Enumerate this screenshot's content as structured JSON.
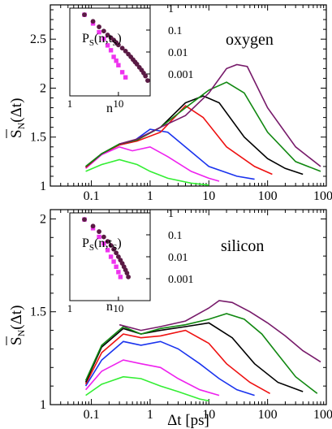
{
  "colors": {
    "green": "#33ee33",
    "magenta": "#ee22ee",
    "blue": "#1a33ee",
    "red": "#ee1111",
    "black": "#000000",
    "darkgreen": "#118811",
    "purple": "#771a6a",
    "inset_pink": "#ee33ee",
    "inset_dark": "#5a1a44"
  },
  "chart_data": [
    {
      "type": "line",
      "label": "oxygen",
      "xscale": "log",
      "xlim": [
        0.02,
        1000
      ],
      "ylim": [
        1,
        2.85
      ],
      "xticks": [
        {
          "v": 0.1,
          "t": "0.1"
        },
        {
          "v": 1,
          "t": "1"
        },
        {
          "v": 10,
          "t": "10"
        },
        {
          "v": 100,
          "t": "100"
        },
        {
          "v": 1000,
          "t": "1000"
        }
      ],
      "yticks": [
        {
          "v": 1,
          "t": "1"
        },
        {
          "v": 1.5,
          "t": "1.5"
        },
        {
          "v": 2,
          "t": "2"
        },
        {
          "v": 2.5,
          "t": "2.5"
        }
      ],
      "ylabel_main": "S",
      "ylabel_sub": "N",
      "ylabel_tail": "(Δt)",
      "series": [
        {
          "color": "green",
          "x": [
            0.08,
            0.15,
            0.3,
            0.6,
            1,
            2,
            5,
            10
          ],
          "y": [
            1.15,
            1.22,
            1.27,
            1.22,
            1.15,
            1.08,
            1.03,
            1.01
          ]
        },
        {
          "color": "magenta",
          "x": [
            0.08,
            0.15,
            0.3,
            0.5,
            1,
            2,
            5,
            10,
            15
          ],
          "y": [
            1.18,
            1.32,
            1.4,
            1.36,
            1.4,
            1.3,
            1.15,
            1.08,
            1.05
          ]
        },
        {
          "color": "blue",
          "x": [
            0.08,
            0.15,
            0.3,
            0.5,
            1,
            2,
            5,
            10,
            30,
            60
          ],
          "y": [
            1.19,
            1.33,
            1.42,
            1.45,
            1.58,
            1.55,
            1.35,
            1.2,
            1.1,
            1.07
          ]
        },
        {
          "color": "red",
          "x": [
            0.08,
            0.15,
            0.3,
            0.6,
            1.5,
            4,
            8,
            20,
            60,
            120
          ],
          "y": [
            1.19,
            1.33,
            1.42,
            1.46,
            1.55,
            1.82,
            1.7,
            1.4,
            1.2,
            1.12
          ]
        },
        {
          "color": "black",
          "x": [
            0.08,
            0.15,
            0.3,
            0.6,
            1.5,
            4,
            8,
            15,
            40,
            100,
            200,
            400
          ],
          "y": [
            1.2,
            1.33,
            1.43,
            1.47,
            1.6,
            1.85,
            1.92,
            1.85,
            1.5,
            1.28,
            1.18,
            1.12
          ]
        },
        {
          "color": "darkgreen",
          "x": [
            0.08,
            0.15,
            0.3,
            0.6,
            1.5,
            4,
            10,
            20,
            40,
            100,
            300,
            800
          ],
          "y": [
            1.2,
            1.33,
            1.43,
            1.47,
            1.6,
            1.8,
            1.98,
            2.06,
            1.95,
            1.55,
            1.25,
            1.15
          ]
        },
        {
          "color": "purple",
          "x": [
            0.3,
            0.6,
            1.5,
            4,
            10,
            20,
            30,
            45,
            100,
            300,
            800
          ],
          "y": [
            1.43,
            1.48,
            1.6,
            1.72,
            1.95,
            2.2,
            2.24,
            2.22,
            1.8,
            1.4,
            1.2
          ]
        }
      ],
      "inset": {
        "ylabel": "P",
        "ylabel_sub": "S",
        "ylabel_tail": "(n;t",
        "ylabel_tail2": ")",
        "xlabel": "n",
        "xticks": [
          {
            "v": 1,
            "t": "1"
          },
          {
            "v": 10,
            "t": "10"
          }
        ],
        "yticks": [
          {
            "v": 1,
            "t": "1"
          },
          {
            "v": 0.1,
            "t": "0.1"
          },
          {
            "v": 0.01,
            "t": "0.01"
          },
          {
            "v": 0.001,
            "t": "0.001"
          }
        ],
        "xlim": [
          1,
          45
        ],
        "ylim": [
          0.0001,
          1
        ],
        "pink": {
          "x": [
            2,
            3,
            4,
            5,
            6,
            7,
            8,
            9,
            10,
            12,
            14
          ],
          "y": [
            0.5,
            0.2,
            0.08,
            0.04,
            0.02,
            0.012,
            0.006,
            0.004,
            0.0025,
            0.0012,
            0.0007
          ]
        },
        "dark": {
          "x": [
            2,
            3,
            4,
            5,
            6,
            7,
            8,
            9,
            10,
            12,
            14,
            16,
            18,
            20,
            22,
            24,
            27,
            30,
            33,
            36,
            40
          ],
          "y": [
            0.5,
            0.25,
            0.14,
            0.09,
            0.06,
            0.045,
            0.035,
            0.027,
            0.021,
            0.015,
            0.011,
            0.008,
            0.006,
            0.0045,
            0.0035,
            0.0028,
            0.002,
            0.0015,
            0.0011,
            0.0008,
            0.0005
          ]
        }
      }
    },
    {
      "type": "line",
      "label": "silicon",
      "xscale": "log",
      "xlim": [
        0.02,
        1000
      ],
      "ylim": [
        1,
        2.05
      ],
      "xticks": [
        {
          "v": 0.1,
          "t": "0.1"
        },
        {
          "v": 1,
          "t": "1"
        },
        {
          "v": 10,
          "t": "10"
        },
        {
          "v": 100,
          "t": "100"
        },
        {
          "v": 1000,
          "t": "1000"
        }
      ],
      "yticks": [
        {
          "v": 1,
          "t": "1"
        },
        {
          "v": 1.5,
          "t": "1.5"
        },
        {
          "v": 2,
          "t": "2"
        }
      ],
      "xlabel": "Δt [ps]",
      "ylabel_main": "S",
      "ylabel_sub": "N",
      "ylabel_tail": "(Δt)",
      "series": [
        {
          "color": "green",
          "x": [
            0.08,
            0.15,
            0.35,
            0.7,
            1.5,
            3,
            7,
            10
          ],
          "y": [
            1.05,
            1.11,
            1.15,
            1.14,
            1.1,
            1.07,
            1.03,
            1.02
          ]
        },
        {
          "color": "magenta",
          "x": [
            0.08,
            0.15,
            0.35,
            0.7,
            1.5,
            3,
            7,
            15
          ],
          "y": [
            1.08,
            1.18,
            1.24,
            1.22,
            1.2,
            1.14,
            1.08,
            1.05
          ]
        },
        {
          "color": "blue",
          "x": [
            0.08,
            0.15,
            0.35,
            0.7,
            1.5,
            3,
            7,
            15,
            30,
            60
          ],
          "y": [
            1.1,
            1.24,
            1.34,
            1.32,
            1.34,
            1.3,
            1.22,
            1.14,
            1.08,
            1.05
          ]
        },
        {
          "color": "red",
          "x": [
            0.08,
            0.15,
            0.35,
            0.7,
            1.5,
            4,
            10,
            20,
            50,
            110
          ],
          "y": [
            1.11,
            1.28,
            1.38,
            1.36,
            1.37,
            1.4,
            1.33,
            1.22,
            1.12,
            1.06
          ]
        },
        {
          "color": "black",
          "x": [
            0.08,
            0.15,
            0.35,
            0.7,
            1.5,
            4,
            10,
            25,
            60,
            150,
            400
          ],
          "y": [
            1.12,
            1.31,
            1.41,
            1.38,
            1.4,
            1.42,
            1.44,
            1.36,
            1.22,
            1.12,
            1.07
          ]
        },
        {
          "color": "darkgreen",
          "x": [
            0.08,
            0.15,
            0.35,
            0.7,
            1.5,
            4,
            10,
            20,
            40,
            80,
            150,
            300,
            700
          ],
          "y": [
            1.13,
            1.32,
            1.42,
            1.38,
            1.41,
            1.43,
            1.46,
            1.49,
            1.46,
            1.38,
            1.27,
            1.15,
            1.06
          ]
        },
        {
          "color": "purple",
          "x": [
            0.3,
            0.7,
            1.5,
            4,
            10,
            15,
            25,
            50,
            100,
            200,
            400,
            800
          ],
          "y": [
            1.43,
            1.4,
            1.42,
            1.45,
            1.52,
            1.56,
            1.55,
            1.5,
            1.44,
            1.37,
            1.29,
            1.23
          ]
        }
      ],
      "inset": {
        "ylabel": "P",
        "ylabel_sub": "S",
        "ylabel_tail": "(n;t",
        "ylabel_tail2": ")",
        "xlabel": "n",
        "xticks": [
          {
            "v": 1,
            "t": "1"
          },
          {
            "v": 10,
            "t": "10"
          }
        ],
        "yticks": [
          {
            "v": 1,
            "t": "1"
          },
          {
            "v": 0.1,
            "t": "0.1"
          },
          {
            "v": 0.01,
            "t": "0.01"
          },
          {
            "v": 0.001,
            "t": "0.001"
          }
        ],
        "xlim": [
          1,
          45
        ],
        "ylim": [
          0.0001,
          1
        ],
        "pink": {
          "x": [
            2,
            3,
            4,
            5,
            6,
            7,
            8,
            9,
            10,
            11
          ],
          "y": [
            0.5,
            0.2,
            0.08,
            0.04,
            0.02,
            0.01,
            0.006,
            0.0035,
            0.002,
            0.0012
          ]
        },
        "dark": {
          "x": [
            2,
            3,
            4,
            5,
            6,
            7,
            8,
            9,
            10,
            11,
            12,
            13,
            14,
            15,
            16
          ],
          "y": [
            0.5,
            0.25,
            0.14,
            0.08,
            0.05,
            0.033,
            0.022,
            0.015,
            0.01,
            0.007,
            0.005,
            0.0035,
            0.0025,
            0.0018,
            0.0012
          ]
        }
      }
    }
  ]
}
